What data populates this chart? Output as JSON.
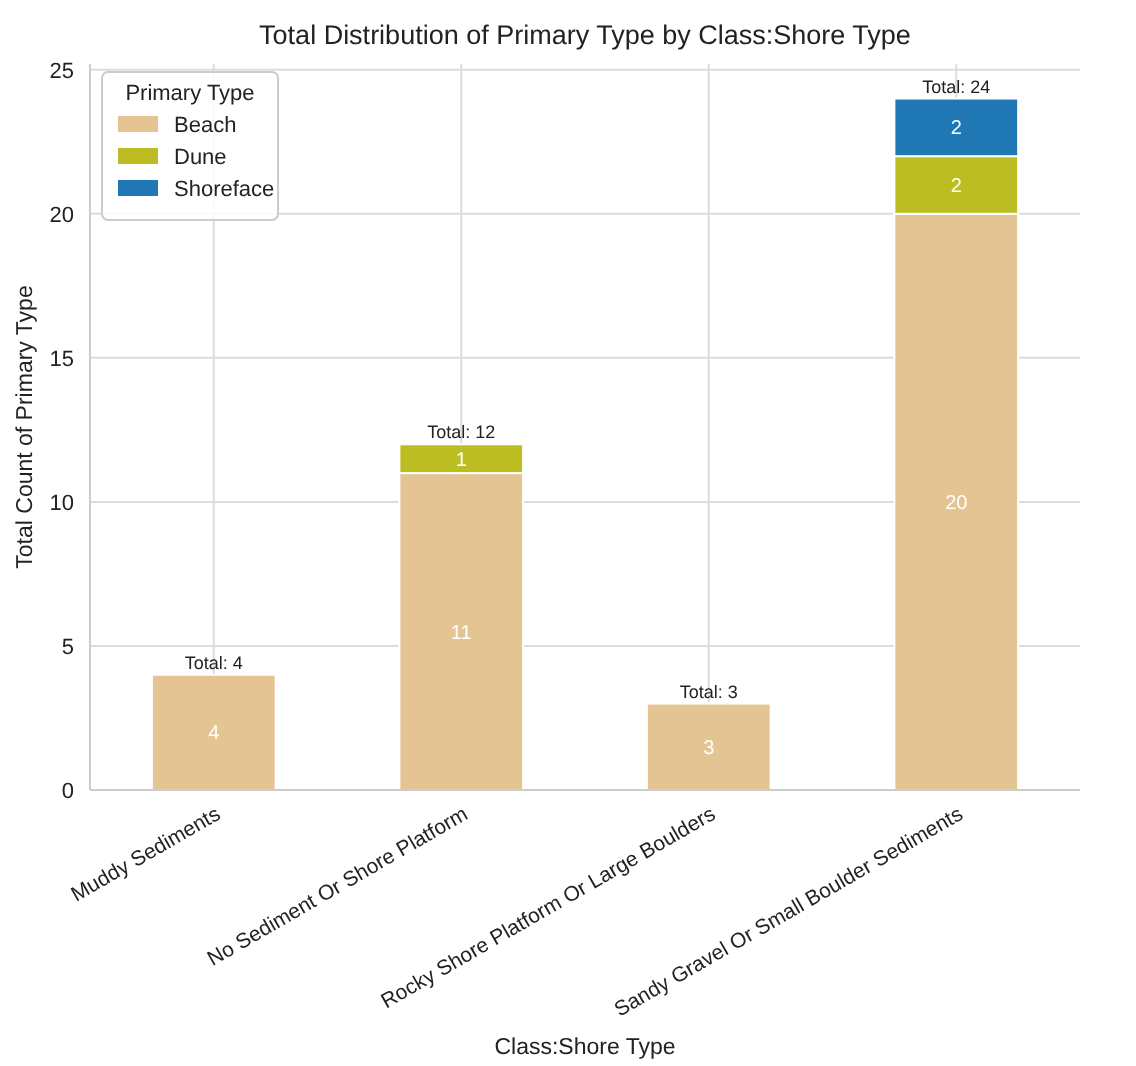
{
  "chart_data": {
    "type": "bar",
    "title": "Total Distribution of Primary Type by Class:Shore Type",
    "xlabel": "Class:Shore Type",
    "ylabel": "Total Count of Primary Type",
    "legend_title": "Primary Type",
    "categories": [
      "Muddy Sediments",
      "No Sediment Or Shore Platform",
      "Rocky Shore Platform Or Large Boulders",
      "Sandy Gravel Or Small Boulder Sediments"
    ],
    "series": [
      {
        "name": "Beach",
        "color": "#e5c494",
        "values": [
          4,
          11,
          3,
          20
        ],
        "value_labels": [
          "4",
          "11",
          "3",
          "20"
        ]
      },
      {
        "name": "Dune",
        "color": "#bcbd22",
        "values": [
          0,
          1,
          0,
          2
        ],
        "value_labels": [
          null,
          "1",
          null,
          "2"
        ]
      },
      {
        "name": "Shoreface",
        "color": "#1f77b4",
        "values": [
          0,
          0,
          0,
          2
        ],
        "value_labels": [
          null,
          null,
          null,
          "2"
        ]
      }
    ],
    "stacked": true,
    "totals": [
      "Total: 4",
      "Total: 12",
      "Total: 3",
      "Total: 24"
    ],
    "ylim": [
      0,
      25.2
    ],
    "yticks": [
      0,
      5,
      10,
      15,
      20,
      25
    ],
    "grid": true,
    "legend": "top left"
  }
}
